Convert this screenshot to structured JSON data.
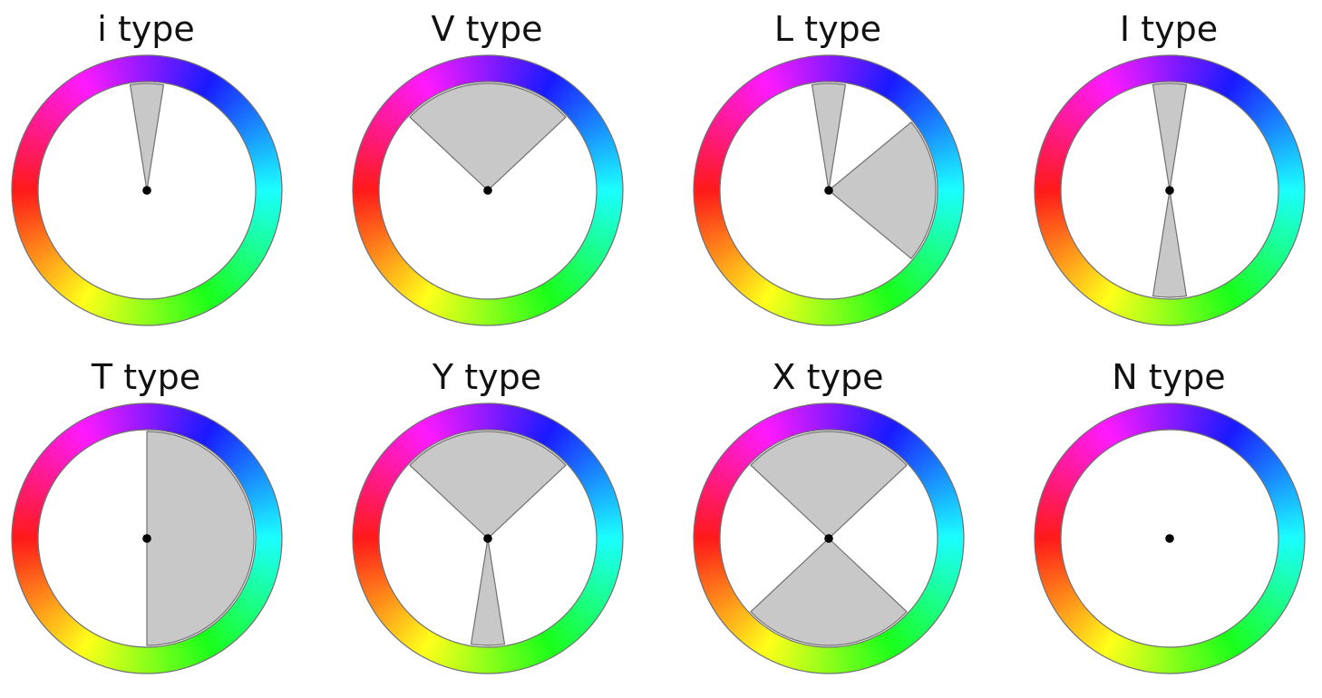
{
  "hue_wheel": {
    "hue_at_top_deg": 270,
    "direction": "clockwise",
    "sector_fill": "#c8c8c8",
    "outline": "#707070",
    "center_dot": "#000000"
  },
  "templates": [
    {
      "title": "i type",
      "sectors": [
        {
          "center_deg": 0,
          "width_deg": 18
        }
      ]
    },
    {
      "title": "V type",
      "sectors": [
        {
          "center_deg": 0,
          "width_deg": 93.6
        }
      ]
    },
    {
      "title": "L type",
      "sectors": [
        {
          "center_deg": 0,
          "width_deg": 18
        },
        {
          "center_deg": 90,
          "width_deg": 79.2
        }
      ]
    },
    {
      "title": "I type",
      "sectors": [
        {
          "center_deg": 0,
          "width_deg": 18
        },
        {
          "center_deg": 180,
          "width_deg": 18
        }
      ]
    },
    {
      "title": "T type",
      "sectors": [
        {
          "center_deg": 90,
          "width_deg": 180
        }
      ]
    },
    {
      "title": "Y type",
      "sectors": [
        {
          "center_deg": 0,
          "width_deg": 93.6
        },
        {
          "center_deg": 180,
          "width_deg": 18
        }
      ]
    },
    {
      "title": "X type",
      "sectors": [
        {
          "center_deg": 0,
          "width_deg": 93.6
        },
        {
          "center_deg": 180,
          "width_deg": 93.6
        }
      ]
    },
    {
      "title": "N type",
      "sectors": []
    }
  ]
}
